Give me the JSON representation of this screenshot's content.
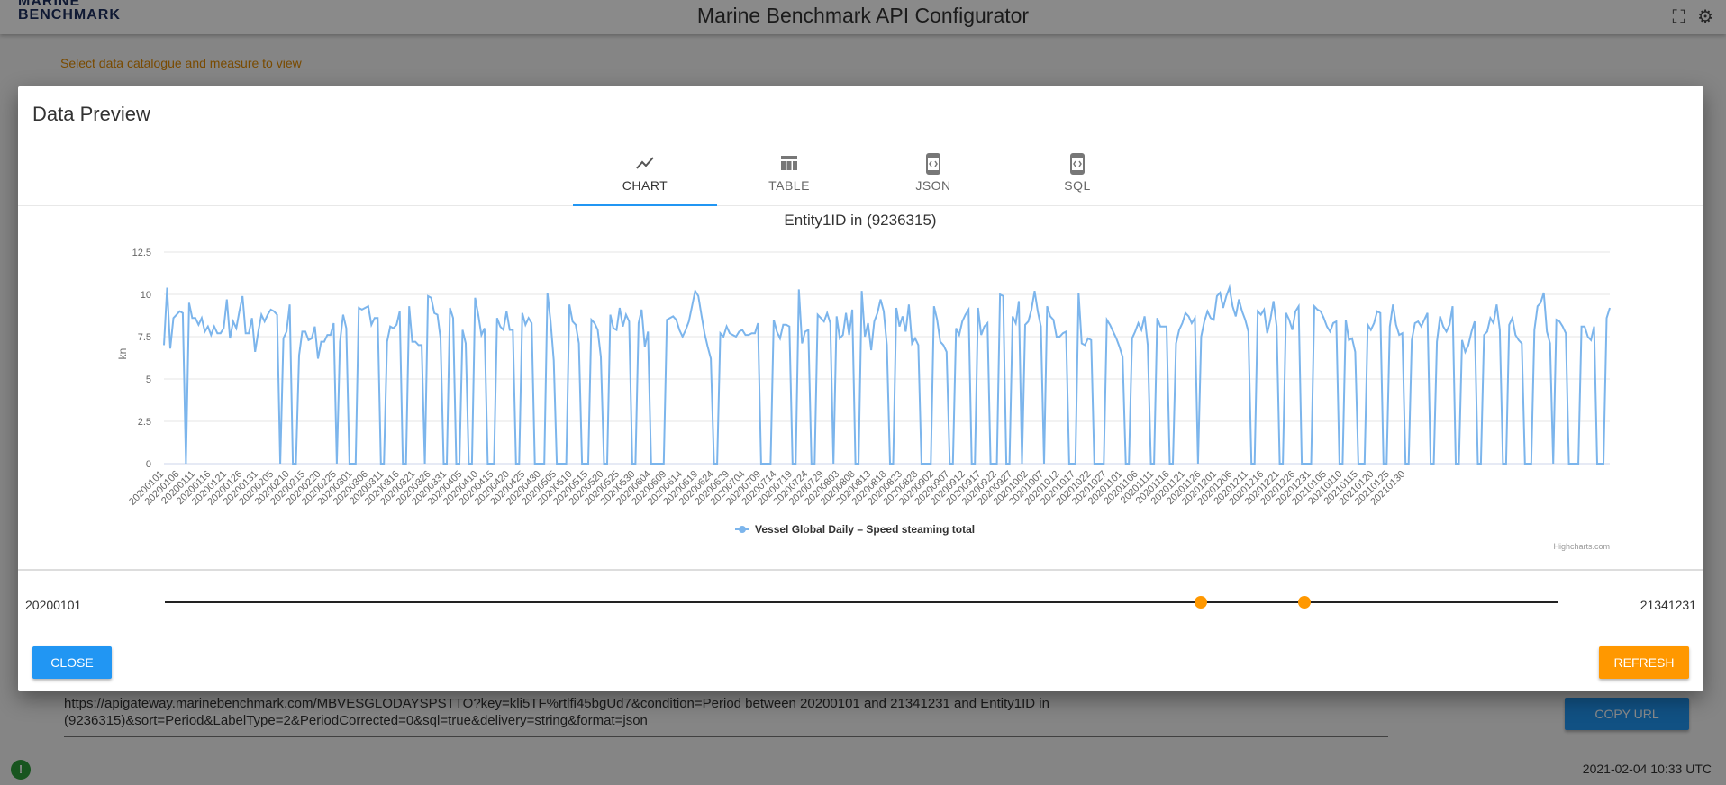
{
  "app": {
    "logo_line1": "MARINE",
    "logo_line2": "BENCHMARK",
    "title": "Marine Benchmark API Configurator",
    "hint": "Select data catalogue and measure to view",
    "api_url": "https://apigateway.marinebenchmark.com/MBVESGLODAYSPSTTO?key=kli5TF%rtlfi45bgUd7&condition=Period between 20200101 and 21341231 and Entity1ID in (9236315)&sort=Period&LabelType=2&PeriodCorrected=0&sql=true&delivery=string&format=json",
    "copy_url_label": "COPY URL",
    "status_icon_text": "!",
    "timestamp": "2021-02-04 10:33 UTC",
    "fullscreen_icon": "fullscreen-icon",
    "settings_icon": "gear-icon"
  },
  "dialog": {
    "title": "Data Preview",
    "tabs": [
      {
        "label": "CHART",
        "icon": "line-chart-icon"
      },
      {
        "label": "TABLE",
        "icon": "table-icon"
      },
      {
        "label": "JSON",
        "icon": "code-doc-icon"
      },
      {
        "label": "SQL",
        "icon": "code-doc-icon"
      }
    ],
    "active_tab": "CHART",
    "range": {
      "min_label": "20200101",
      "max_label": "21341231",
      "low_fraction": 0.744,
      "high_fraction": 0.818
    },
    "close_label": "CLOSE",
    "refresh_label": "REFRESH",
    "credits": "Highcharts.com"
  },
  "colors": {
    "accent": "#2196f3",
    "series": "#7cb5ec",
    "orange": "#ff9800",
    "hint": "#e08a00"
  },
  "chart_data": {
    "type": "line",
    "title": "Entity1ID in (9236315)",
    "ylabel": "kn",
    "ylim": [
      0,
      12.5
    ],
    "yticks": [
      "0",
      "2.5",
      "5",
      "7.5",
      "10",
      "12.5"
    ],
    "x_tick_labels": [
      "20200101",
      "20200106",
      "20200111",
      "20200116",
      "20200121",
      "20200126",
      "20200131",
      "20200205",
      "20200210",
      "20200215",
      "20200220",
      "20200225",
      "20200301",
      "20200306",
      "20200311",
      "20200316",
      "20200321",
      "20200326",
      "20200331",
      "20200405",
      "20200410",
      "20200415",
      "20200420",
      "20200425",
      "20200430",
      "20200505",
      "20200510",
      "20200515",
      "20200520",
      "20200525",
      "20200530",
      "20200604",
      "20200609",
      "20200614",
      "20200619",
      "20200624",
      "20200629",
      "20200704",
      "20200709",
      "20200714",
      "20200719",
      "20200724",
      "20200729",
      "20200803",
      "20200808",
      "20200813",
      "20200818",
      "20200823",
      "20200828",
      "20200902",
      "20200907",
      "20200912",
      "20200917",
      "20200922",
      "20200927",
      "20201002",
      "20201007",
      "20201012",
      "20201017",
      "20201022",
      "20201027",
      "20201101",
      "20201106",
      "20201111",
      "20201116",
      "20201121",
      "20201126",
      "20201201",
      "20201206",
      "20201211",
      "20201216",
      "20201221",
      "20201226",
      "20201231",
      "20210105",
      "20210110",
      "20210115",
      "20210120",
      "20210125",
      "20210130"
    ],
    "series": [
      {
        "name": "Vessel Global Daily – Speed steaming total",
        "values": [
          7,
          10.4,
          6.8,
          8.6,
          8.8,
          9,
          8.9,
          0,
          9.5,
          8.6,
          8.6,
          8.2,
          8.6,
          7.8,
          8.1,
          7.6,
          8.1,
          7.7,
          7.7,
          8,
          9.7,
          7.4,
          8.4,
          8,
          9,
          9.9,
          7.7,
          7.7,
          8.6,
          6.6,
          7.8,
          8.8,
          8.4,
          8.8,
          9.1,
          9,
          8.8,
          0,
          7.4,
          7.8,
          9.4,
          0,
          0,
          6.4,
          7.8,
          7.8,
          7.3,
          7.4,
          8.1,
          6.2,
          7.2,
          7.2,
          7.6,
          7.6,
          8.3,
          0,
          7.2,
          8.8,
          8,
          0,
          0,
          0,
          9.2,
          9.1,
          9.2,
          9.3,
          8.2,
          8.6,
          8.6,
          0,
          0,
          7.2,
          8.1,
          8,
          8.2,
          9,
          0,
          0,
          9.3,
          7.2,
          7.2,
          7,
          7,
          0,
          9.9,
          9.8,
          8.9,
          8.8,
          7.4,
          0,
          0,
          9.2,
          8.6,
          0,
          0,
          7.9,
          7.1,
          0,
          0,
          9.8,
          8.8,
          7.6,
          8,
          0,
          0,
          0,
          8.6,
          8.1,
          7.9,
          9,
          7.9,
          7.9,
          0,
          0,
          8.9,
          8.2,
          8.6,
          8.3,
          0,
          0,
          0,
          0,
          10.1,
          8.4,
          6.1,
          0,
          0,
          0,
          0,
          9.4,
          8.4,
          8.2,
          7.1,
          0,
          0,
          0,
          8.5,
          8.3,
          7.9,
          6.3,
          0,
          0,
          8.8,
          8,
          7.9,
          9.2,
          8.1,
          8.8,
          8.4,
          0,
          0,
          8.3,
          9.1,
          6.9,
          7.8,
          0,
          0,
          0,
          0,
          0,
          8.5,
          8.6,
          8.7,
          8.5,
          7.9,
          7.5,
          7.9,
          8.4,
          9.3,
          10.2,
          9.9,
          8.8,
          7.7,
          6.9,
          6.2,
          0,
          0,
          7.7,
          7.5,
          8.1,
          7.7,
          7.6,
          7.5,
          7.8,
          7.9,
          7.6,
          7.6,
          7.7,
          7.7,
          8.3,
          0,
          0,
          0,
          0,
          8.5,
          7.8,
          7.4,
          8.2,
          8.2,
          8.1,
          0,
          0,
          10.3,
          7.1,
          7.8,
          7.9,
          0,
          0,
          8.8,
          8.6,
          8.4,
          8.9,
          8.3,
          0,
          8.7,
          7.4,
          7.6,
          8.9,
          7.6,
          9.1,
          0,
          0,
          10.2,
          7.5,
          8.3,
          6.7,
          8.4,
          8.9,
          9.7,
          9,
          7,
          0,
          0,
          9.2,
          8.1,
          8.7,
          7.8,
          9.4,
          7.1,
          7.4,
          7,
          0,
          0,
          0,
          0,
          9.3,
          8.5,
          7.2,
          7,
          6.6,
          0,
          0,
          8,
          7.6,
          8.4,
          8.8,
          9.1,
          0,
          0,
          9.2,
          7.6,
          8.1,
          8.3,
          0,
          0,
          0,
          10,
          9.9,
          0,
          0,
          8.7,
          8.3,
          9.6,
          0,
          8.2,
          8.4,
          9.1,
          10.2,
          9,
          8.1,
          0,
          9.3,
          8.7,
          8.5,
          7.5,
          7.5,
          7.7,
          7.8,
          0,
          0,
          0,
          10.1,
          7.1,
          7,
          7.4,
          7.3,
          0,
          0,
          0,
          0,
          8.5,
          8.2,
          7.8,
          7.4,
          6.9,
          6.3,
          0,
          0,
          7.4,
          7.8,
          8.3,
          7.9,
          8.7,
          7,
          0,
          0,
          8.6,
          8.1,
          8.1,
          8.1,
          0,
          0,
          7.1,
          7.9,
          8.3,
          8.9,
          8.7,
          8.3,
          8.6,
          0,
          7.5,
          8.4,
          9,
          8.6,
          8.5,
          9.9,
          10.1,
          9.2,
          9.9,
          10.4,
          9.3,
          8.7,
          9.7,
          9,
          8.5,
          7.8,
          0,
          0,
          9,
          8.8,
          9.1,
          7.7,
          8.5,
          9.6,
          8.1,
          0,
          0,
          8.9,
          8.5,
          7.9,
          9,
          9.3,
          0,
          0,
          0,
          0,
          9.3,
          9.1,
          9,
          8.6,
          8.1,
          7.8,
          8.3,
          8.4,
          0,
          0,
          8.5,
          7.3,
          7.4,
          6.6,
          0,
          0,
          0,
          8.2,
          7.9,
          8.3,
          9,
          8.9,
          0,
          0,
          8.1,
          9.4,
          8.2,
          7.6,
          7.7,
          0,
          0,
          7.3,
          8.3,
          8.4,
          8.1,
          8.5,
          8.9,
          0,
          0,
          7.2,
          8.7,
          8.1,
          7.8,
          8.2,
          9.3,
          0,
          0,
          7.3,
          6.6,
          7,
          7.8,
          8.4,
          0,
          0,
          7.6,
          7.8,
          8.6,
          8.3,
          9.4,
          7.9,
          0,
          0,
          8.2,
          8.6,
          7.6,
          7.3,
          7.1,
          0,
          0,
          0,
          7.9,
          9.3,
          9.5,
          10.1,
          7.8,
          7.1,
          0,
          8.5,
          8.4,
          8.1,
          7.7,
          0,
          0,
          0,
          0,
          8.1,
          8.1,
          7.5,
          7.3,
          8.1,
          0,
          0,
          0,
          8.6,
          9.2
        ]
      }
    ],
    "legend_position": "bottom-center",
    "grid": true
  }
}
